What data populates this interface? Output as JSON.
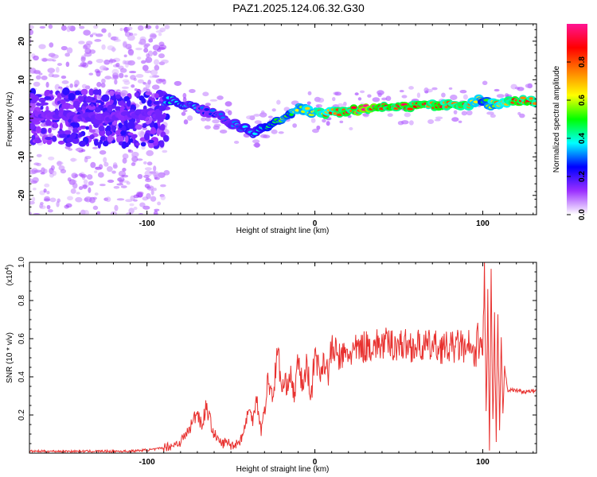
{
  "title": "PAZ1.2025.124.06.32.G30",
  "chart_data": [
    {
      "type": "heatmap",
      "xlabel": "Height of straight line (km)",
      "ylabel": "Frequency (Hz)",
      "xlim": [
        -170,
        132
      ],
      "ylim": [
        -25,
        24.5
      ],
      "xticks": [
        -100,
        0,
        100
      ],
      "yticks": [
        -20,
        -10,
        0,
        10,
        20
      ],
      "xtick_labels": [
        "-100",
        "0",
        "100"
      ],
      "ytick_labels": [
        "-20",
        "-10",
        "0",
        "10",
        "20"
      ],
      "ridge": {
        "x": [
          -170,
          -150,
          -130,
          -110,
          -92,
          -88,
          -80,
          -72,
          -65,
          -58,
          -50,
          -45,
          -40,
          -36,
          -30,
          -25,
          -20,
          -15,
          -10,
          -5,
          0,
          5,
          15,
          30,
          50,
          70,
          90,
          100,
          105,
          110,
          120,
          132
        ],
        "y": [
          0,
          1,
          0,
          1,
          1,
          5,
          4,
          3,
          2,
          1,
          -1,
          -2,
          -3,
          -4,
          -2,
          -1,
          0,
          1,
          3,
          2,
          1,
          1.5,
          1.5,
          2.5,
          3,
          3.5,
          3.5,
          5,
          3.5,
          4,
          4.5,
          4.5
        ],
        "amplitude": [
          0.3,
          0.3,
          0.3,
          0.3,
          0.3,
          0.4,
          0.4,
          0.35,
          0.3,
          0.3,
          0.3,
          0.35,
          0.4,
          0.4,
          0.45,
          0.5,
          0.6,
          0.6,
          0.65,
          0.7,
          0.75,
          0.8,
          0.9,
          1.0,
          0.95,
          0.9,
          0.85,
          0.6,
          0.6,
          0.8,
          0.9,
          0.9
        ]
      },
      "grid": false,
      "colorbar": {
        "label": "Normalized spectral amplitude",
        "range": [
          0,
          1
        ],
        "ticks": [
          0.0,
          0.2,
          0.4,
          0.6,
          0.8
        ],
        "tick_labels": [
          "0.0",
          "0.2",
          "0.4",
          "0.6",
          "0.8"
        ],
        "colors": [
          "#ffffff",
          "#9b30ff",
          "#0000ff",
          "#00ffff",
          "#00ff00",
          "#ffff00",
          "#ff8000",
          "#ff0000",
          "#ff1493"
        ]
      }
    },
    {
      "type": "line",
      "xlabel": "Height of straight line (km)",
      "ylabel": "SNR (10 * v/v)",
      "y_multiplier": "(x10",
      "y_multiplier_exp": "4",
      "y_multiplier_close": ")",
      "xlim": [
        -170,
        132
      ],
      "ylim": [
        0,
        1.0
      ],
      "xticks": [
        -100,
        0,
        100
      ],
      "yticks": [
        0.2,
        0.4,
        0.6,
        0.8,
        1.0
      ],
      "xtick_labels": [
        "-100",
        "0",
        "100"
      ],
      "ytick_labels": [
        "0.2",
        "0.4",
        "0.6",
        "0.8",
        "1.0"
      ],
      "grid": false,
      "series": [
        {
          "color": "#e8312f",
          "x": [
            -170,
            -140,
            -110,
            -95,
            -90,
            -85,
            -80,
            -75,
            -72,
            -70,
            -67,
            -65,
            -62,
            -60,
            -57,
            -55,
            -52,
            -50,
            -47,
            -45,
            -42,
            -40,
            -37,
            -35,
            -32,
            -30,
            -28,
            -25,
            -22,
            -20,
            -17,
            -15,
            -12,
            -10,
            -7,
            -5,
            -2,
            0,
            3,
            5,
            8,
            10,
            15,
            20,
            25,
            30,
            40,
            50,
            60,
            70,
            80,
            88,
            90,
            92,
            95,
            97,
            100,
            101,
            102,
            103,
            104,
            105,
            106,
            107,
            108,
            109,
            110,
            111,
            112,
            113,
            115,
            120,
            125,
            132
          ],
          "y": [
            0.01,
            0.01,
            0.01,
            0.02,
            0.03,
            0.04,
            0.06,
            0.12,
            0.18,
            0.22,
            0.14,
            0.25,
            0.16,
            0.1,
            0.06,
            0.05,
            0.06,
            0.04,
            0.05,
            0.06,
            0.12,
            0.22,
            0.18,
            0.3,
            0.12,
            0.22,
            0.38,
            0.3,
            0.55,
            0.34,
            0.36,
            0.42,
            0.3,
            0.48,
            0.34,
            0.46,
            0.3,
            0.55,
            0.4,
            0.5,
            0.42,
            0.55,
            0.5,
            0.52,
            0.54,
            0.56,
            0.57,
            0.57,
            0.56,
            0.56,
            0.55,
            0.57,
            0.5,
            0.58,
            0.47,
            0.6,
            0.52,
            1.0,
            0.2,
            0.8,
            0.02,
            0.9,
            0.15,
            0.65,
            0.05,
            0.72,
            0.12,
            0.6,
            0.2,
            0.45,
            0.33,
            0.33,
            0.32,
            0.33
          ]
        }
      ]
    }
  ]
}
